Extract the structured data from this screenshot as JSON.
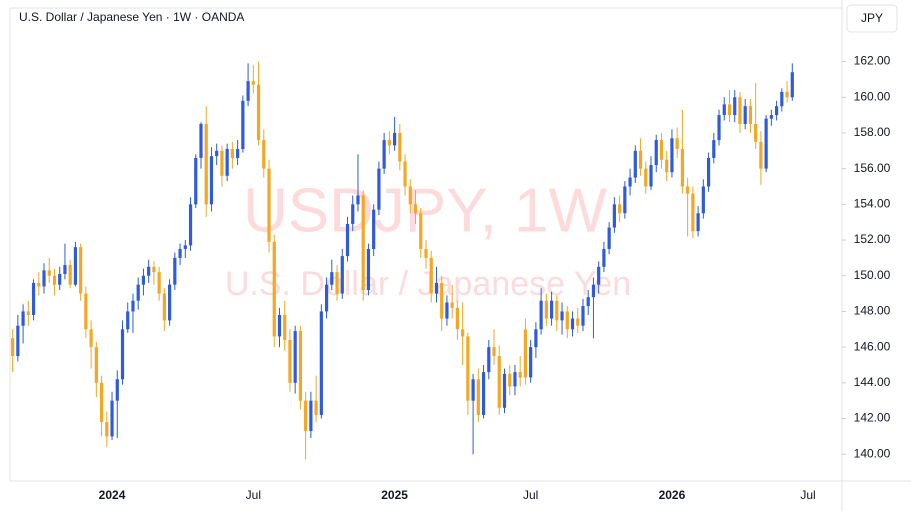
{
  "chart_data": {
    "type": "candlestick",
    "title": "U.S. Dollar / Japanese Yen · 1W · OANDA",
    "currency": "JPY",
    "watermark": {
      "symbol": "USDJPY, 1W",
      "name": "U.S. Dollar / Japanese Yen"
    },
    "up_color": "#2e5bdc",
    "down_color": "#f5a623",
    "categories": [
      null,
      null,
      null,
      null,
      null,
      null,
      null,
      null,
      null,
      null,
      null,
      null,
      null,
      null,
      null,
      null,
      null,
      null,
      null,
      "2024",
      null,
      null,
      null,
      null,
      null,
      null,
      null,
      null,
      null,
      null,
      null,
      null,
      null,
      null,
      null,
      null,
      null,
      null,
      null,
      null,
      null,
      null,
      null,
      null,
      null,
      null,
      "Jul",
      null,
      null,
      null,
      null,
      null,
      null,
      null,
      null,
      null,
      null,
      null,
      null,
      null,
      null,
      null,
      null,
      null,
      null,
      null,
      null,
      null,
      null,
      null,
      null,
      null,
      null,
      "2025",
      null,
      null,
      null,
      null,
      null,
      null,
      null,
      null,
      null,
      null,
      null,
      null,
      null,
      null,
      null,
      null,
      null,
      null,
      null,
      null,
      null,
      null,
      null,
      null,
      null,
      "Jul",
      null,
      null,
      null,
      null,
      null,
      null,
      null,
      null,
      null,
      null,
      null,
      null,
      null,
      null,
      null,
      null,
      null,
      null,
      null,
      null,
      null,
      null,
      null,
      null,
      null,
      null,
      "2026",
      null,
      null,
      null,
      null,
      null,
      null,
      null,
      null,
      null,
      null,
      null,
      null,
      null,
      null,
      null,
      null,
      null,
      null,
      null,
      null,
      null,
      null,
      null,
      null,
      null,
      "Jul",
      null,
      null,
      null,
      null,
      null,
      null
    ],
    "open": [
      146.5,
      145.5,
      147.2,
      148.0,
      147.8,
      149.6,
      149.4,
      150.3,
      150.0,
      149.5,
      150.1,
      150.6,
      149.5,
      151.6,
      149.0,
      147.0,
      146.0,
      144.0,
      141.8,
      141.0,
      143.0,
      144.2,
      147.0,
      148.0,
      148.6,
      149.5,
      150.0,
      150.5,
      150.2,
      149.0,
      147.5,
      149.5,
      151.0,
      151.5,
      151.7,
      154.0,
      156.6,
      158.5,
      154.0,
      156.7,
      157.0,
      155.6,
      157.1,
      156.6,
      157.1,
      159.8,
      160.9,
      160.7,
      157.6,
      156.0,
      151.9,
      146.6,
      147.8,
      146.4,
      144.0,
      146.9,
      143.0,
      141.3,
      143.0,
      142.2,
      148.0,
      149.5,
      150.2,
      149.0,
      151.1,
      152.9,
      154.0,
      154.5,
      149.2,
      151.5,
      153.7,
      156.0,
      157.6,
      157.3,
      158.0,
      156.4,
      155.0,
      154.0,
      153.5,
      151.5,
      151.0,
      149.0,
      149.6,
      147.6,
      148.5,
      148.2,
      147.0,
      146.6,
      143.0,
      144.2,
      142.2,
      144.6,
      146.0,
      145.5,
      142.6,
      144.5,
      143.8,
      144.6,
      147.0,
      144.3,
      146.0,
      147.0,
      148.6,
      147.6,
      148.6,
      147.5,
      148.0,
      147.0,
      147.6,
      147.2,
      148.3,
      148.8,
      149.5,
      150.5,
      151.5,
      152.7,
      154.0,
      153.5,
      155.0,
      155.5,
      157.0,
      156.0,
      155.0,
      156.2,
      157.6,
      156.5,
      155.8,
      157.7,
      157.1,
      155.0,
      154.6,
      152.5,
      153.5,
      155.0,
      156.6,
      157.6,
      159.0,
      159.6,
      159.0,
      160.0,
      158.5,
      159.5,
      158.5,
      157.5,
      156.0,
      158.8,
      159.0,
      159.5,
      160.3,
      160.0,
      null,
      null,
      null,
      null,
      null,
      null,
      null,
      null,
      null
    ],
    "high": [
      147.0,
      147.8,
      148.4,
      148.6,
      149.8,
      150.2,
      150.7,
      151.0,
      150.4,
      150.5,
      151.8,
      150.9,
      151.9,
      151.8,
      149.4,
      147.5,
      146.3,
      144.4,
      142.4,
      143.5,
      144.7,
      147.5,
      148.5,
      149.0,
      149.9,
      150.4,
      150.9,
      150.8,
      150.5,
      149.3,
      149.8,
      151.3,
      151.8,
      152.0,
      154.4,
      156.8,
      158.6,
      159.5,
      157.2,
      157.4,
      157.3,
      157.4,
      157.5,
      157.6,
      160.1,
      161.9,
      161.8,
      162.0,
      158.2,
      156.5,
      152.3,
      148.2,
      148.6,
      147.0,
      147.2,
      147.2,
      143.5,
      143.5,
      144.4,
      148.4,
      149.9,
      150.9,
      150.6,
      151.5,
      153.3,
      154.5,
      156.8,
      154.8,
      151.8,
      154.0,
      156.4,
      158.0,
      158.1,
      158.9,
      158.5,
      156.8,
      155.4,
      154.8,
      153.8,
      152.0,
      151.4,
      150.5,
      150.0,
      148.9,
      149.5,
      148.6,
      148.5,
      146.8,
      144.5,
      144.8,
      145.0,
      146.4,
      147.0,
      146.1,
      144.8,
      145.0,
      145.0,
      145.5,
      147.6,
      146.4,
      147.4,
      149.3,
      149.0,
      149.1,
      148.9,
      148.5,
      148.3,
      148.0,
      148.2,
      148.7,
      149.2,
      149.9,
      150.8,
      151.9,
      153.0,
      154.4,
      154.5,
      155.3,
      156.0,
      157.3,
      157.7,
      156.4,
      156.7,
      157.9,
      158.0,
      157.0,
      158.2,
      158.3,
      159.3,
      155.5,
      155.0,
      153.9,
      155.4,
      156.9,
      158.0,
      159.3,
      160.0,
      160.4,
      160.4,
      160.3,
      159.9,
      159.9,
      160.8,
      158.1,
      159.0,
      159.3,
      159.8,
      160.5,
      160.9,
      161.9,
      null,
      null,
      null,
      null,
      null,
      null,
      null,
      null,
      null
    ],
    "low": [
      144.6,
      145.2,
      146.2,
      147.2,
      147.5,
      148.9,
      149.0,
      149.6,
      148.9,
      149.2,
      149.8,
      149.3,
      149.4,
      148.6,
      146.5,
      144.8,
      143.2,
      141.0,
      140.4,
      140.8,
      140.9,
      143.9,
      146.8,
      146.8,
      148.1,
      148.9,
      149.6,
      149.5,
      148.6,
      146.9,
      147.2,
      149.2,
      150.6,
      151.0,
      151.4,
      153.8,
      156.0,
      153.3,
      153.6,
      156.2,
      155.0,
      155.3,
      156.0,
      156.2,
      156.9,
      159.5,
      160.2,
      157.3,
      155.5,
      151.3,
      146.0,
      146.0,
      145.8,
      143.5,
      143.4,
      142.5,
      139.7,
      140.9,
      141.8,
      142.0,
      147.6,
      149.2,
      148.6,
      148.7,
      150.8,
      152.5,
      153.6,
      148.6,
      148.9,
      151.1,
      153.4,
      155.7,
      156.8,
      157.0,
      155.9,
      154.5,
      153.5,
      152.9,
      151.0,
      150.4,
      148.5,
      148.5,
      146.9,
      147.2,
      147.6,
      146.4,
      145.0,
      142.2,
      140.0,
      141.8,
      142.0,
      144.2,
      145.0,
      142.2,
      142.3,
      143.3,
      143.3,
      143.8,
      143.9,
      144.0,
      145.4,
      146.7,
      147.2,
      147.2,
      146.9,
      146.7,
      146.5,
      146.6,
      146.8,
      146.9,
      147.8,
      146.5,
      149.0,
      150.2,
      151.2,
      152.4,
      153.0,
      153.2,
      154.5,
      155.2,
      155.6,
      154.6,
      154.8,
      155.8,
      156.0,
      155.3,
      155.5,
      156.6,
      154.6,
      152.2,
      152.1,
      152.2,
      153.2,
      154.7,
      156.3,
      157.3,
      158.7,
      158.6,
      158.6,
      158.0,
      158.2,
      158.0,
      157.1,
      155.1,
      155.8,
      158.4,
      158.7,
      159.2,
      159.7,
      159.8,
      null,
      null,
      null,
      null,
      null,
      null,
      null,
      null,
      null
    ],
    "close": [
      145.5,
      147.2,
      148.0,
      147.8,
      149.6,
      149.4,
      150.3,
      150.0,
      149.5,
      150.1,
      150.6,
      149.5,
      151.6,
      149.0,
      147.0,
      146.0,
      144.0,
      141.8,
      141.0,
      143.0,
      144.2,
      147.0,
      148.0,
      148.6,
      149.5,
      150.0,
      150.5,
      150.2,
      149.0,
      147.5,
      149.5,
      151.0,
      151.5,
      151.7,
      154.0,
      156.6,
      158.5,
      154.0,
      156.7,
      157.0,
      155.6,
      157.1,
      156.6,
      157.1,
      159.8,
      160.9,
      160.7,
      157.6,
      156.0,
      151.9,
      146.6,
      147.8,
      146.4,
      144.0,
      146.9,
      143.0,
      141.3,
      143.0,
      142.2,
      148.0,
      149.5,
      150.2,
      149.0,
      151.1,
      152.9,
      154.0,
      154.5,
      149.2,
      151.5,
      153.7,
      156.0,
      157.6,
      157.3,
      158.0,
      156.4,
      155.0,
      154.0,
      153.5,
      151.5,
      151.0,
      149.0,
      149.6,
      147.6,
      148.5,
      148.2,
      147.0,
      146.6,
      143.0,
      144.2,
      142.2,
      144.6,
      146.0,
      145.5,
      142.6,
      144.5,
      143.8,
      144.6,
      144.3,
      144.3,
      146.0,
      147.0,
      148.6,
      147.6,
      148.6,
      147.5,
      148.0,
      147.0,
      147.6,
      147.2,
      148.3,
      148.8,
      149.5,
      150.5,
      151.5,
      152.7,
      154.0,
      153.5,
      155.0,
      155.5,
      157.0,
      156.0,
      155.0,
      156.2,
      157.6,
      156.5,
      155.8,
      157.7,
      157.1,
      155.0,
      154.6,
      152.5,
      153.5,
      155.0,
      156.6,
      157.6,
      159.0,
      159.6,
      159.0,
      160.0,
      158.5,
      159.5,
      158.5,
      157.5,
      156.0,
      158.8,
      159.0,
      159.5,
      160.3,
      160.0,
      161.4,
      null,
      null,
      null,
      null,
      null,
      null,
      null,
      null,
      null
    ],
    "ylim": [
      138.5,
      165
    ],
    "yticks": [
      {
        "value": 140,
        "label": "140.00"
      },
      {
        "value": 142,
        "label": "142.00"
      },
      {
        "value": 144,
        "label": "144.00"
      },
      {
        "value": 146,
        "label": "146.00"
      },
      {
        "value": 148,
        "label": "148.00"
      },
      {
        "value": 150,
        "label": "150.00"
      },
      {
        "value": 152,
        "label": "152.00"
      },
      {
        "value": 154,
        "label": "154.00"
      },
      {
        "value": 156,
        "label": "156.00"
      },
      {
        "value": 158,
        "label": "158.00"
      },
      {
        "value": 160,
        "label": "160.00"
      },
      {
        "value": 162,
        "label": "162.00"
      }
    ],
    "grid": false
  }
}
